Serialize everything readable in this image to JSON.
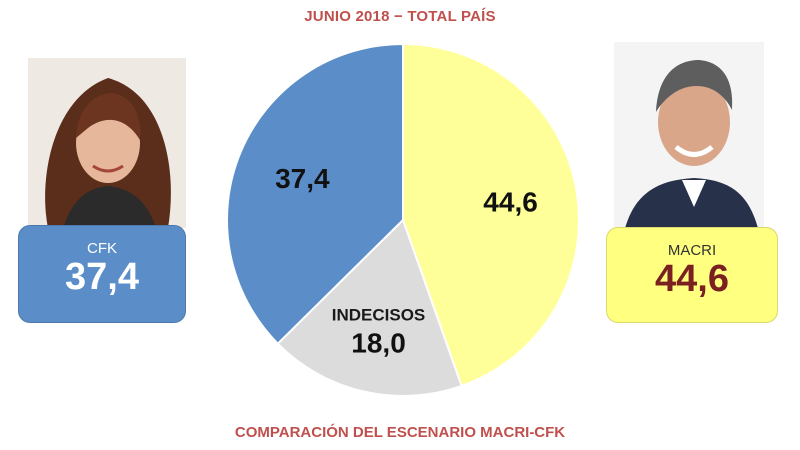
{
  "header": {
    "title": "JUNIO 2018 − TOTAL PAÍS"
  },
  "footer": {
    "caption": "COMPARACIÓN DEL ESCENARIO MACRI-CFK"
  },
  "cards": {
    "left": {
      "name": "CFK",
      "value": "37,4"
    },
    "right": {
      "name": "MACRI",
      "value": "44,6"
    }
  },
  "chart_data": {
    "type": "pie",
    "title": "JUNIO 2018 − TOTAL PAÍS",
    "slices": [
      {
        "label": "",
        "value": 44.6,
        "display": "44,6",
        "color": "#ffff99"
      },
      {
        "label": "INDECISOS",
        "value": 18.0,
        "display": "18,0",
        "color": "#dcdcdc"
      },
      {
        "label": "",
        "value": 37.4,
        "display": "37,4",
        "color": "#5b8ec9"
      }
    ]
  }
}
